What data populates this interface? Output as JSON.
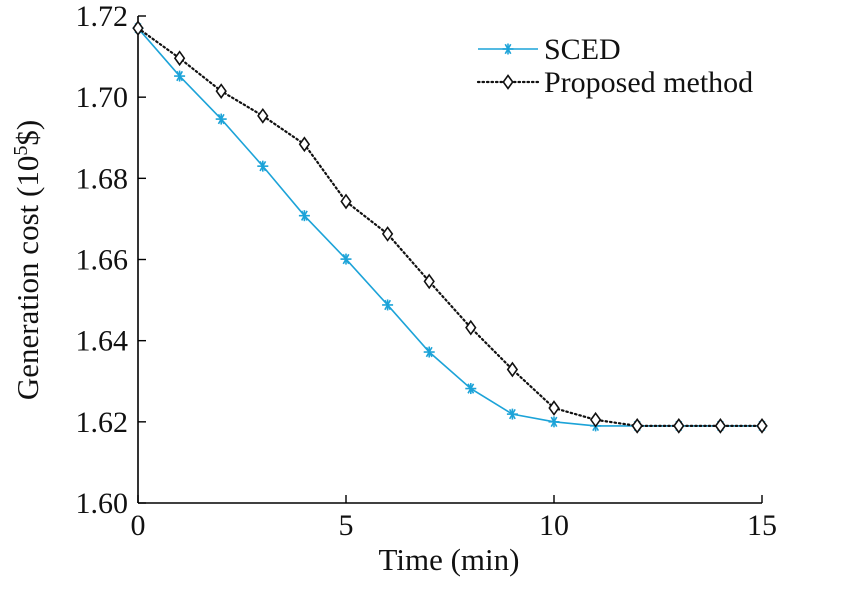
{
  "chart_data": {
    "type": "line",
    "title": "",
    "xlabel": "Time (min)",
    "ylabel_main": "Generation cost (10",
    "ylabel_sup": "5",
    "ylabel_tail": "$)",
    "xlim": [
      0,
      15
    ],
    "ylim": [
      1.6,
      1.72
    ],
    "xticks": [
      0,
      5,
      10,
      15
    ],
    "xtick_labels": [
      "0",
      "5",
      "10",
      "15"
    ],
    "yticks": [
      1.6,
      1.62,
      1.64,
      1.66,
      1.68,
      1.7,
      1.72
    ],
    "ytick_labels": [
      "1.60",
      "1.62",
      "1.64",
      "1.66",
      "1.68",
      "1.70",
      "1.72"
    ],
    "grid": false,
    "legend_position": "top-right",
    "x": [
      0,
      1,
      2,
      3,
      4,
      5,
      6,
      7,
      8,
      9,
      10,
      11,
      12,
      13,
      14,
      15
    ],
    "series": [
      {
        "name": "SCED",
        "color": "#1ca3d8",
        "line_style": "solid",
        "marker": "asterisk",
        "values": [
          1.717,
          1.7052,
          1.6946,
          1.683,
          1.6708,
          1.6601,
          1.6488,
          1.6372,
          1.6282,
          1.6219,
          1.62,
          1.619,
          1.619,
          1.619,
          1.619,
          1.619
        ]
      },
      {
        "name": "Proposed method",
        "color": "#111111",
        "line_style": "dotted",
        "marker": "diamond",
        "values": [
          1.717,
          1.7096,
          1.7015,
          1.6954,
          1.6884,
          1.6743,
          1.6663,
          1.6546,
          1.6432,
          1.6329,
          1.6234,
          1.6205,
          1.619,
          1.619,
          1.619,
          1.619
        ]
      }
    ]
  }
}
